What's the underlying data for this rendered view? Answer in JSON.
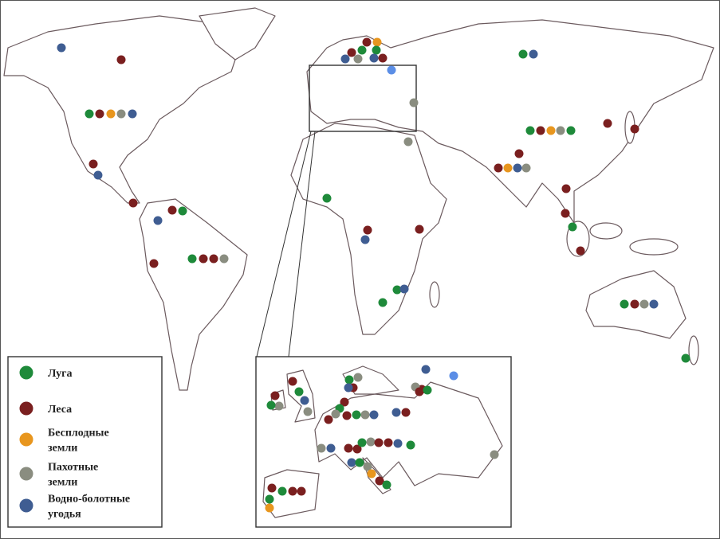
{
  "legend": {
    "items": [
      {
        "label": [
          "Луга"
        ]
      },
      {
        "label": [
          "Леса"
        ]
      },
      {
        "label": [
          "Бесплодные",
          "земли"
        ]
      },
      {
        "label": [
          "Пахотные",
          "земли"
        ]
      },
      {
        "label": [
          "Водно-болотные",
          "угодья"
        ]
      }
    ]
  }
}
